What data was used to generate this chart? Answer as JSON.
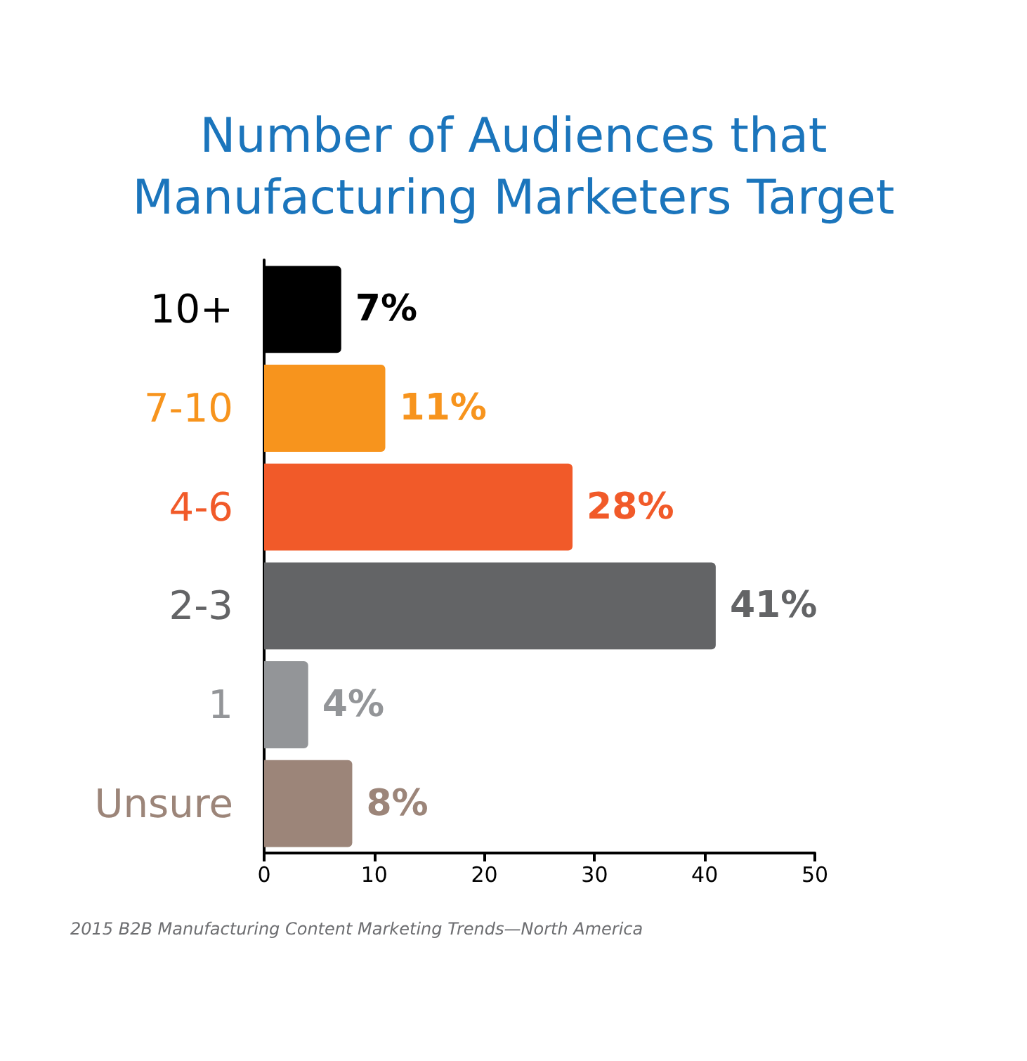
{
  "chart_data": {
    "type": "bar",
    "orientation": "horizontal",
    "title": "Number of Audiences that\nManufacturing Marketers Target",
    "categories": [
      "10+",
      "7-10",
      "4-6",
      "2-3",
      "1",
      "Unsure"
    ],
    "values": [
      7,
      11,
      28,
      41,
      4,
      8
    ],
    "colors": [
      "#000000",
      "#f7941d",
      "#f15a29",
      "#636466",
      "#939598",
      "#9c8579"
    ],
    "value_labels": [
      "7%",
      "11%",
      "28%",
      "41%",
      "4%",
      "8%"
    ],
    "xlim": [
      0,
      50
    ],
    "xticks": [
      0,
      10,
      20,
      30,
      40,
      50
    ],
    "annotations": [
      "2015 B2B Manufacturing Content Marketing Trends—North America"
    ]
  }
}
